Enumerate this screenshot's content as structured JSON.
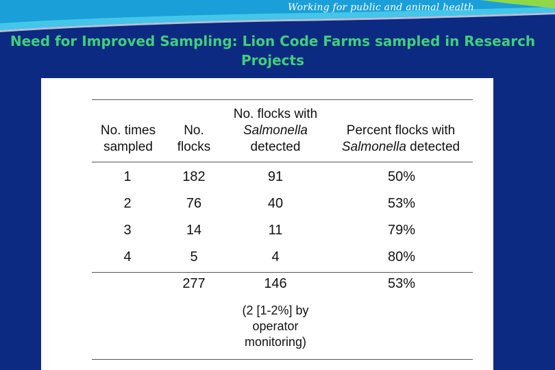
{
  "header": {
    "tagline": "Working for public and animal health",
    "title": "Need for Improved Sampling: Lion Code Farms sampled in Research Projects"
  },
  "table": {
    "columns": [
      {
        "line1": "No. times",
        "line2": "sampled"
      },
      {
        "line1": "No.",
        "line2": "flocks"
      },
      {
        "line1": "No. flocks with",
        "line2": "Salmonella",
        "line3": "detected"
      },
      {
        "line1": "Percent flocks with",
        "line2a": "Salmonella",
        "line2b": " detected"
      }
    ],
    "rows": [
      [
        "1",
        "182",
        "91",
        "50%"
      ],
      [
        "2",
        "76",
        "40",
        "53%"
      ],
      [
        "3",
        "14",
        "11",
        "79%"
      ],
      [
        "4",
        "5",
        "4",
        "80%"
      ]
    ],
    "total": [
      "",
      "277",
      "146",
      "53%"
    ],
    "note": [
      "(2 [1-2%] by",
      "operator",
      "monitoring)"
    ]
  },
  "colors": {
    "background": "#0d2a82",
    "title": "#3fd07a",
    "banner": "#1ea6de"
  }
}
